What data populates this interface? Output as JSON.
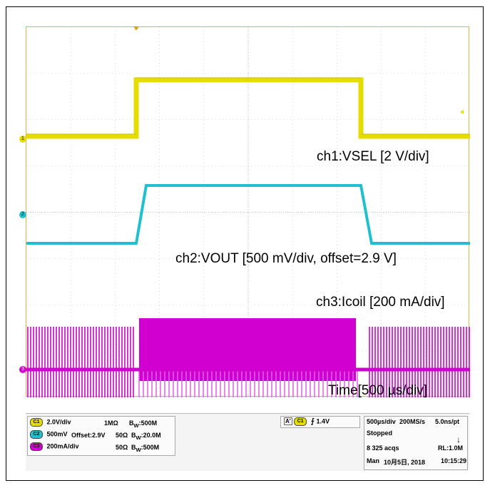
{
  "labels": {
    "ch1": "ch1:VSEL [2 V/div]",
    "ch2": "ch2:VOUT [500 mV/div, offset=2.9 V]",
    "ch3": "ch3:Icoil [200 mA/div]",
    "time": "Time[500 µs/div]"
  },
  "markers": {
    "ch1": "1",
    "ch2": "2",
    "ch3": "3"
  },
  "channels": [
    {
      "chip": "C1",
      "scale": "2.0V/div",
      "impedance": "1MΩ",
      "bw_prefix": "B",
      "bw_sub": "W",
      "bw": ":500M",
      "offset": ""
    },
    {
      "chip": "C2",
      "scale": "500mV",
      "offset": "Offset:2.9V",
      "impedance": "50Ω",
      "bw_prefix": "B",
      "bw_sub": "W",
      "bw": ":20.0M"
    },
    {
      "chip": "C3",
      "scale": "200mA/div",
      "impedance": "50Ω",
      "bw_prefix": "B",
      "bw_sub": "W",
      "bw": ":500M",
      "offset": ""
    }
  ],
  "trigger": {
    "mode": "A'",
    "chip": "C1",
    "level": "1.4V"
  },
  "acquisition": {
    "timebase": "500µs/div",
    "sample_rate": "200MS/s",
    "per_point": "5.0ns/pt",
    "state": "Stopped",
    "acqs": "8 325 acqs",
    "record_length": "RL:1.0M",
    "mode": "Man",
    "date": "10月5日, 2018",
    "time": "10:15:29"
  },
  "colors": {
    "ch1": "#e6dd00",
    "ch2": "#20c0d0",
    "ch3": "#d000d0",
    "grid": "#b8b8b8",
    "border": "#e6b04a"
  }
}
